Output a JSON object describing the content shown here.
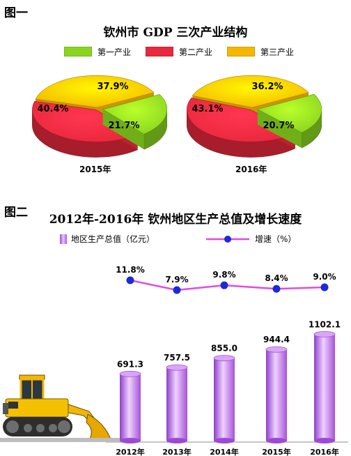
{
  "fig1": {
    "label": "图一",
    "title": "钦州市 GDP 三次产业结构",
    "legend": [
      {
        "name": "第一产业",
        "color": "#8ad51f"
      },
      {
        "name": "第二产业",
        "color": "#e8283c"
      },
      {
        "name": "第三产业",
        "color": "#f5b800"
      }
    ]
  },
  "fig2": {
    "label": "图二",
    "title": "2012年-2016年 钦州地区生产总值及增长速度",
    "legend_bar": "地区生产总值（亿元）",
    "legend_line": "增速（%）",
    "bar_color": "#c27ee6",
    "line_color": "#e24be0",
    "point_color": "#1b2bd6"
  },
  "chart_data": [
    {
      "type": "pie",
      "title": "",
      "year": "2015年",
      "slices": [
        {
          "name": "第一产业",
          "value": 21.7,
          "label": "21.7%"
        },
        {
          "name": "第二产业",
          "value": 40.4,
          "label": "40.4%"
        },
        {
          "name": "第三产业",
          "value": 37.9,
          "label": "37.9%"
        }
      ]
    },
    {
      "type": "pie",
      "title": "",
      "year": "2016年",
      "slices": [
        {
          "name": "第一产业",
          "value": 20.7,
          "label": "20.7%"
        },
        {
          "name": "第二产业",
          "value": 43.1,
          "label": "43.1%"
        },
        {
          "name": "第三产业",
          "value": 36.2,
          "label": "36.2%"
        }
      ]
    },
    {
      "type": "bar",
      "title": "2012年-2016年 钦州地区生产总值及增长速度",
      "categories": [
        "2012年",
        "2013年",
        "2014年",
        "2015年",
        "2016年"
      ],
      "series": [
        {
          "name": "地区生产总值（亿元）",
          "values": [
            691.3,
            757.5,
            855.0,
            944.4,
            1102.1
          ],
          "labels": [
            "691.3",
            "757.5",
            "855.0",
            "944.4",
            "1102.1"
          ]
        },
        {
          "name": "增速（%）",
          "type": "line",
          "values": [
            11.8,
            7.9,
            9.8,
            8.4,
            9.0
          ],
          "labels": [
            "11.8%",
            "7.9%",
            "9.8%",
            "8.4%",
            "9.0%"
          ]
        }
      ],
      "ylim": [
        0,
        1300
      ]
    }
  ]
}
